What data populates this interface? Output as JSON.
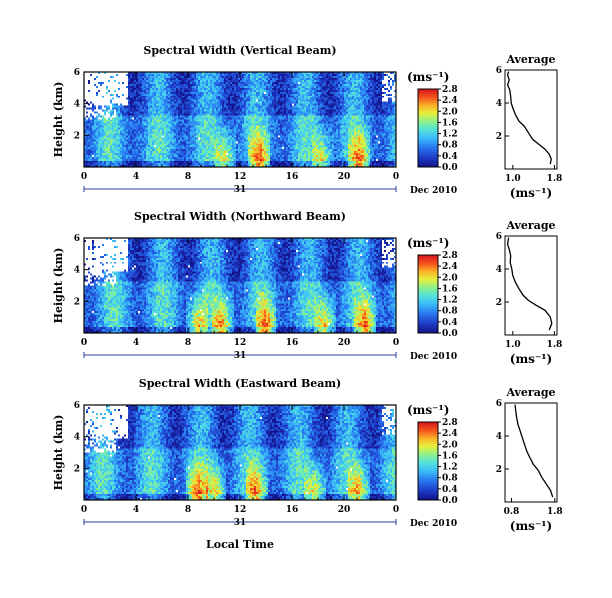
{
  "chart_data": [
    {
      "type": "heatmap",
      "title": "Spectral Width (Vertical Beam)",
      "ylabel": "Height (km)",
      "y_ticks": [
        2,
        4,
        6
      ],
      "x_ticks": [
        "0",
        "4",
        "8",
        "12",
        "16",
        "20",
        "0"
      ],
      "day_label": "31",
      "month_label": "Dec 2010",
      "colorbar": {
        "unit": "(ms⁻¹)",
        "ticks": [
          "0.0",
          "0.4",
          "0.8",
          "1.2",
          "1.6",
          "2.0",
          "2.4",
          "2.8"
        ]
      },
      "average": {
        "title": "Average",
        "xlabel": "(ms⁻¹)",
        "x_ticks": [
          "1.0",
          "1.8"
        ],
        "y_ticks": [
          2,
          4,
          6
        ],
        "profile": [
          [
            1.72,
            0.3
          ],
          [
            1.74,
            0.6
          ],
          [
            1.7,
            0.9
          ],
          [
            1.62,
            1.2
          ],
          [
            1.5,
            1.5
          ],
          [
            1.38,
            1.8
          ],
          [
            1.3,
            2.2
          ],
          [
            1.22,
            2.6
          ],
          [
            1.12,
            2.9
          ],
          [
            1.05,
            3.3
          ],
          [
            1.0,
            3.7
          ],
          [
            0.97,
            4.0
          ],
          [
            0.96,
            4.4
          ],
          [
            0.94,
            4.8
          ],
          [
            0.9,
            5.1
          ],
          [
            0.93,
            5.4
          ],
          [
            0.9,
            5.7
          ],
          [
            0.92,
            5.9
          ]
        ]
      }
    },
    {
      "type": "heatmap",
      "title": "Spectral Width (Northward Beam)",
      "ylabel": "Height (km)",
      "y_ticks": [
        2,
        4,
        6
      ],
      "x_ticks": [
        "0",
        "4",
        "8",
        "12",
        "16",
        "20",
        "0"
      ],
      "day_label": "31",
      "month_label": "Dec 2010",
      "colorbar": {
        "unit": "(ms⁻¹)",
        "ticks": [
          "0.0",
          "0.4",
          "0.8",
          "1.2",
          "1.6",
          "2.0",
          "2.4",
          "2.8"
        ]
      },
      "average": {
        "title": "Average",
        "xlabel": "(ms⁻¹)",
        "x_ticks": [
          "1.0",
          "1.8"
        ],
        "y_ticks": [
          2,
          4,
          6
        ],
        "profile": [
          [
            1.7,
            0.3
          ],
          [
            1.75,
            0.7
          ],
          [
            1.72,
            1.1
          ],
          [
            1.62,
            1.5
          ],
          [
            1.45,
            1.8
          ],
          [
            1.3,
            2.1
          ],
          [
            1.2,
            2.4
          ],
          [
            1.12,
            2.8
          ],
          [
            1.05,
            3.2
          ],
          [
            1.0,
            3.6
          ],
          [
            0.98,
            4.0
          ],
          [
            0.95,
            4.4
          ],
          [
            0.96,
            4.8
          ],
          [
            0.93,
            5.2
          ],
          [
            0.9,
            5.5
          ],
          [
            0.92,
            5.9
          ]
        ]
      }
    },
    {
      "type": "heatmap",
      "title": "Spectral Width (Eastward Beam)",
      "ylabel": "Height (km)",
      "y_ticks": [
        2,
        4,
        6
      ],
      "x_ticks": [
        "0",
        "4",
        "8",
        "12",
        "16",
        "20",
        "0"
      ],
      "day_label": "31",
      "month_label": "Dec 2010",
      "xlabel": "Local Time",
      "colorbar": {
        "unit": "(ms⁻¹)",
        "ticks": [
          "0.0",
          "0.4",
          "0.8",
          "1.2",
          "1.6",
          "2.0",
          "2.4",
          "2.8"
        ]
      },
      "average": {
        "title": "Average",
        "xlabel": "(ms⁻¹)",
        "x_ticks": [
          "0.8",
          "1.8"
        ],
        "y_ticks": [
          2,
          4,
          6
        ],
        "profile": [
          [
            1.75,
            0.3
          ],
          [
            1.7,
            0.7
          ],
          [
            1.6,
            1.1
          ],
          [
            1.5,
            1.5
          ],
          [
            1.42,
            1.9
          ],
          [
            1.3,
            2.3
          ],
          [
            1.22,
            2.7
          ],
          [
            1.15,
            3.1
          ],
          [
            1.1,
            3.5
          ],
          [
            1.05,
            3.9
          ],
          [
            1.0,
            4.3
          ],
          [
            0.95,
            4.7
          ],
          [
            0.92,
            5.1
          ],
          [
            0.9,
            5.5
          ],
          [
            0.88,
            5.9
          ]
        ]
      }
    }
  ]
}
